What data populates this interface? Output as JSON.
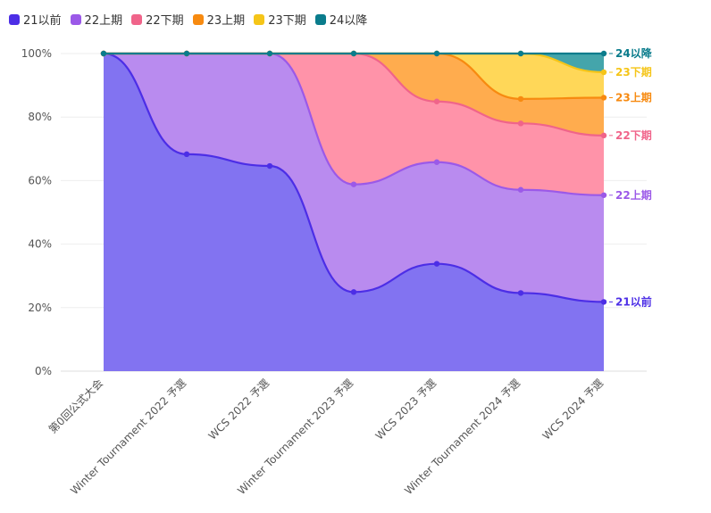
{
  "chart_data": {
    "type": "area",
    "stacked": true,
    "normalized": true,
    "categories": [
      "第0回公式大会",
      "Winter Tournament 2022 予選",
      "WCS 2022 予選",
      "Winter Tournament 2023 予選",
      "WCS 2023 予選",
      "Winter Tournament 2024 予選",
      "WCS 2024 予選"
    ],
    "series": [
      {
        "name": "21以前",
        "color": "#4c2ee6",
        "fill": "#7b6bf0",
        "values": [
          100,
          68.3,
          64.6,
          24.9,
          33.8,
          24.6,
          21.8
        ]
      },
      {
        "name": "22上期",
        "color": "#9b59e8",
        "fill": "#b585ee",
        "values": [
          0,
          31.7,
          35.4,
          33.9,
          32.0,
          32.5,
          33.6
        ]
      },
      {
        "name": "22下期",
        "color": "#f0648a",
        "fill": "#ff8da4",
        "values": [
          0,
          0,
          0,
          41.2,
          19.1,
          20.9,
          18.8
        ]
      },
      {
        "name": "23上期",
        "color": "#f78a10",
        "fill": "#ffa844",
        "values": [
          0,
          0,
          0,
          0,
          15.1,
          7.7,
          11.9
        ]
      },
      {
        "name": "23下期",
        "color": "#f5c518",
        "fill": "#ffd54f",
        "values": [
          0,
          0,
          0,
          0,
          0,
          14.3,
          8.0
        ]
      },
      {
        "name": "24以降",
        "color": "#0a7c8c",
        "fill": "#3aa0a6",
        "values": [
          0,
          0,
          0,
          0,
          0,
          0,
          5.9
        ]
      }
    ],
    "y_ticks": [
      "0%",
      "20%",
      "40%",
      "60%",
      "80%",
      "100%"
    ],
    "ylim": [
      0,
      100
    ],
    "legend_position": "top-left",
    "grid": true
  }
}
